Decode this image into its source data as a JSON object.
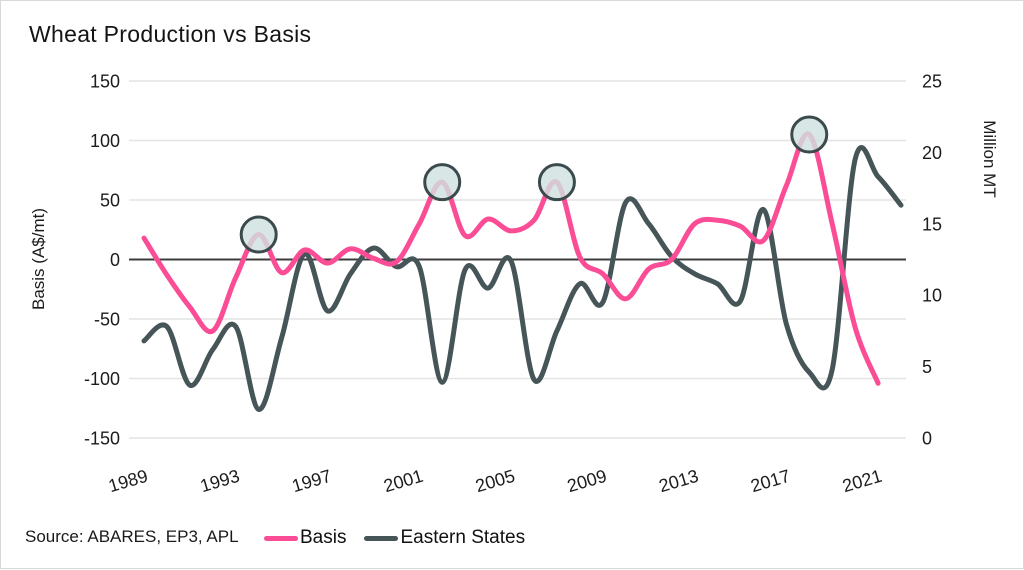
{
  "title": "Wheat Production vs Basis",
  "source": "Source: ABARES, EP3, APL",
  "legend": [
    {
      "label": "Basis",
      "color": "#fb4d96"
    },
    {
      "label": "Eastern States",
      "color": "#465558"
    }
  ],
  "left_axis": {
    "title": "Basis (A$/mt)",
    "ticks": [
      150,
      100,
      50,
      0,
      -50,
      -100,
      -150
    ]
  },
  "right_axis": {
    "title": "Million MT",
    "ticks": [
      25,
      20,
      15,
      10,
      5,
      0
    ]
  },
  "x_axis": {
    "ticks": [
      1989,
      1993,
      1997,
      2001,
      2005,
      2009,
      2013,
      2017,
      2021
    ]
  },
  "colors": {
    "basis_line": "#fb4d96",
    "eastern_states_line": "#465558",
    "gridline": "#e4e4e4",
    "zero_line": "#3c3c3c",
    "highlight_circle_fill": "#cfe0e0",
    "highlight_circle_stroke": "#3b4a4c",
    "text": "#1c1c1c"
  },
  "chart_data": {
    "type": "line",
    "title": "Wheat Production vs Basis",
    "xlabel": "",
    "x_tick_labels": [
      1989,
      1993,
      1997,
      2001,
      2005,
      2009,
      2013,
      2017,
      2021
    ],
    "left_ylabel": "Basis (A$/mt)",
    "left_ylim": [
      -150,
      150
    ],
    "right_ylabel": "Million MT",
    "right_ylim": [
      0,
      25
    ],
    "grid": "horizontal",
    "legend_position": "bottom",
    "series": [
      {
        "name": "Basis",
        "axis": "left",
        "color": "#fb4d96",
        "x": [
          1989,
          1990,
          1991,
          1992,
          1993,
          1994,
          1995,
          1996,
          1997,
          1998,
          1999,
          2000,
          2001,
          2002,
          2003,
          2004,
          2005,
          2006,
          2007,
          2008,
          2009,
          2010,
          2011,
          2012,
          2013,
          2014,
          2015,
          2016,
          2017,
          2018,
          2019,
          2020,
          2021
        ],
        "values": [
          18,
          -13,
          -40,
          -60,
          -15,
          21,
          -11,
          8,
          -3,
          9,
          1,
          -2,
          30,
          65,
          20,
          34,
          24,
          33,
          65,
          2,
          -12,
          -33,
          -8,
          0,
          30,
          33,
          28,
          16,
          62,
          105,
          30,
          -57,
          -104
        ]
      },
      {
        "name": "Eastern States",
        "axis": "right",
        "color": "#465558",
        "x": [
          1989,
          1990,
          1991,
          1992,
          1993,
          1994,
          1995,
          1996,
          1997,
          1998,
          1999,
          2000,
          2001,
          2002,
          2003,
          2004,
          2005,
          2006,
          2007,
          2008,
          2009,
          2010,
          2011,
          2012,
          2013,
          2014,
          2015,
          2016,
          2017,
          2018,
          2019,
          2020,
          2021,
          2022
        ],
        "values": [
          6.8,
          7.8,
          3.7,
          6.2,
          7.8,
          2.0,
          7.0,
          12.9,
          8.9,
          11.5,
          13.3,
          12.0,
          12.0,
          3.9,
          11.8,
          10.5,
          12.4,
          4.1,
          7.5,
          10.8,
          9.5,
          16.5,
          15.0,
          12.7,
          11.5,
          10.8,
          9.6,
          16.0,
          8.0,
          4.6,
          4.8,
          19.5,
          18.3,
          16.3
        ]
      }
    ],
    "highlighted_peak_years": [
      1994,
      2002,
      2007,
      2018
    ]
  }
}
